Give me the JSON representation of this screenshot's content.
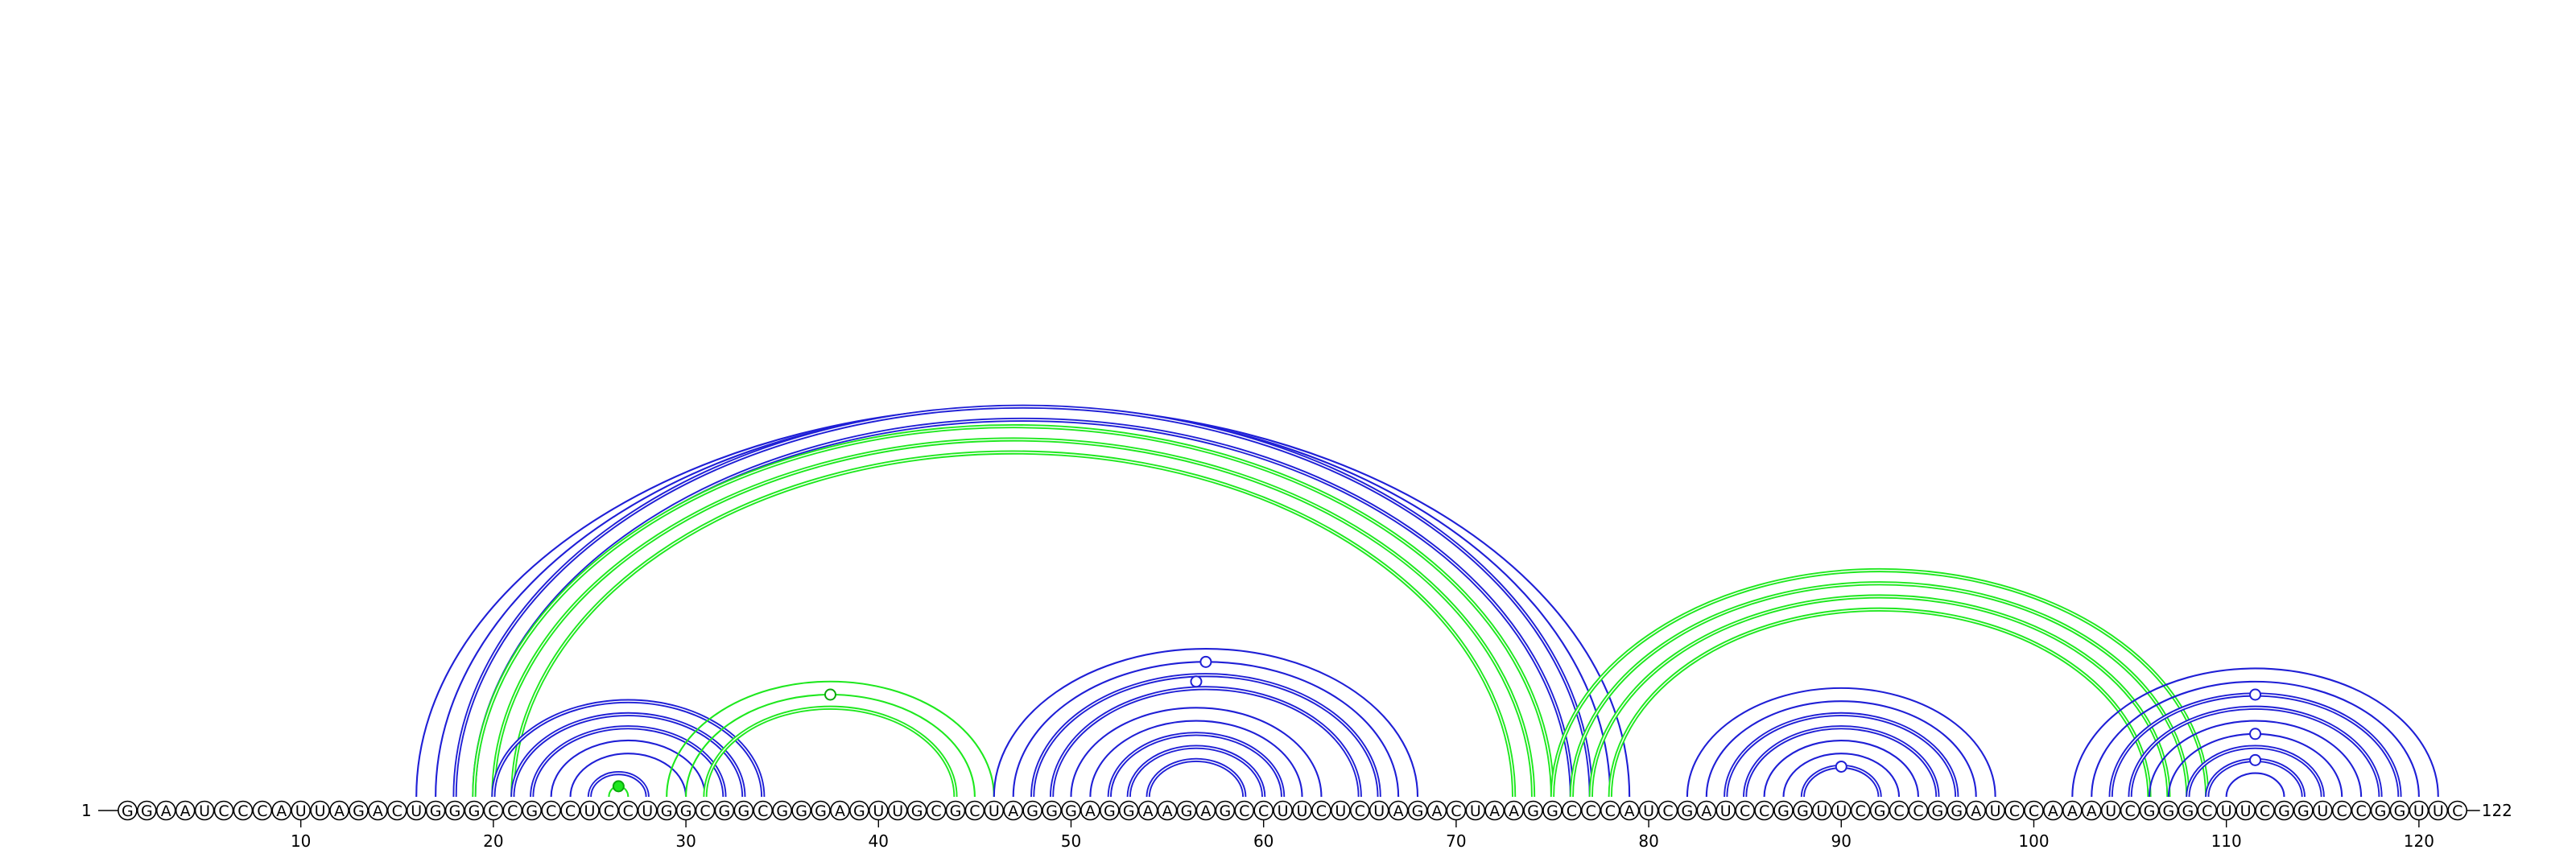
{
  "sequence": "GGAAUCCCAUUAGACUGGGCCGCCUCCUGGCGGCGGGAGUUGCGCUAGGGAGGAAGAGCCUUCUCUAGACUAAGGCCCAUCGAUCCGGUUCGCCGGAUCCAAAUCGGGCUUCGGUCCGGUUC",
  "start_label": "1",
  "end_label": "122",
  "ticks": [
    10,
    20,
    30,
    40,
    50,
    60,
    70,
    80,
    90,
    100,
    110,
    120
  ],
  "colors": {
    "blue": "#1f1fd6",
    "green": "#1ee81e",
    "green_dark": "#0ba80b",
    "line": "#000000"
  },
  "helices": [
    {
      "color": "blue",
      "style": "single",
      "pairs": [
        [
          16,
          79
        ],
        [
          17,
          78
        ],
        [
          18,
          77
        ]
      ]
    },
    {
      "color": "blue",
      "style": "double",
      "pairs": [
        [
          18,
          77
        ],
        [
          19,
          76
        ]
      ]
    },
    {
      "color": "green",
      "style": "double",
      "pairs": [
        [
          19,
          75
        ],
        [
          20,
          74
        ],
        [
          21,
          73
        ]
      ]
    },
    {
      "color": "blue",
      "style": "double",
      "pairs": [
        [
          20,
          34
        ],
        [
          21,
          33
        ],
        [
          22,
          32
        ]
      ]
    },
    {
      "color": "blue",
      "style": "single",
      "pairs": [
        [
          23,
          31
        ],
        [
          24,
          30
        ]
      ]
    },
    {
      "color": "blue",
      "style": "double",
      "pairs": [
        [
          25,
          28
        ]
      ]
    },
    {
      "color": "green",
      "style": "single",
      "pairs": [
        [
          26,
          27
        ]
      ]
    },
    {
      "color": "green",
      "style": "single",
      "pairs": [
        [
          29,
          46
        ],
        [
          30,
          45
        ]
      ]
    },
    {
      "color": "green",
      "style": "double",
      "pairs": [
        [
          31,
          44
        ]
      ]
    },
    {
      "color": "blue",
      "style": "single",
      "pairs": [
        [
          46,
          68
        ],
        [
          47,
          67
        ]
      ]
    },
    {
      "color": "blue",
      "style": "double",
      "pairs": [
        [
          48,
          66
        ],
        [
          49,
          65
        ]
      ]
    },
    {
      "color": "blue",
      "style": "single",
      "pairs": [
        [
          50,
          63
        ],
        [
          51,
          62
        ]
      ]
    },
    {
      "color": "blue",
      "style": "double",
      "pairs": [
        [
          52,
          61
        ],
        [
          53,
          60
        ],
        [
          54,
          59
        ]
      ]
    },
    {
      "color": "green",
      "style": "double",
      "pairs": [
        [
          75,
          109
        ],
        [
          76,
          108
        ],
        [
          77,
          107
        ],
        [
          78,
          106
        ]
      ]
    },
    {
      "color": "blue",
      "style": "single",
      "pairs": [
        [
          82,
          98
        ],
        [
          83,
          97
        ]
      ]
    },
    {
      "color": "blue",
      "style": "double",
      "pairs": [
        [
          84,
          96
        ],
        [
          85,
          95
        ]
      ]
    },
    {
      "color": "blue",
      "style": "single",
      "pairs": [
        [
          86,
          94
        ],
        [
          87,
          93
        ]
      ]
    },
    {
      "color": "blue",
      "style": "double",
      "pairs": [
        [
          88,
          92
        ]
      ]
    },
    {
      "color": "blue",
      "style": "single",
      "pairs": [
        [
          102,
          121
        ],
        [
          103,
          120
        ]
      ]
    },
    {
      "color": "blue",
      "style": "double",
      "pairs": [
        [
          104,
          119
        ],
        [
          105,
          118
        ]
      ]
    },
    {
      "color": "blue",
      "style": "single",
      "pairs": [
        [
          106,
          117
        ],
        [
          107,
          116
        ]
      ]
    },
    {
      "color": "blue",
      "style": "double",
      "pairs": [
        [
          108,
          115
        ],
        [
          109,
          114
        ]
      ]
    },
    {
      "color": "blue",
      "style": "single",
      "pairs": [
        [
          110,
          113
        ]
      ]
    }
  ],
  "markers": [
    {
      "pair": [
        26,
        27
      ],
      "color": "green",
      "filled": true
    },
    {
      "pair": [
        30,
        45
      ],
      "color": "green",
      "filled": false
    },
    {
      "pair": [
        47,
        67
      ],
      "color": "blue",
      "filled": false
    },
    {
      "pair": [
        48,
        65
      ],
      "color": "blue",
      "filled": false
    },
    {
      "pair": [
        88,
        92
      ],
      "color": "blue",
      "filled": false
    },
    {
      "pair": [
        104,
        119
      ],
      "color": "blue",
      "filled": false
    },
    {
      "pair": [
        107,
        116
      ],
      "color": "blue",
      "filled": false
    },
    {
      "pair": [
        109,
        114
      ],
      "color": "blue",
      "filled": false
    }
  ]
}
